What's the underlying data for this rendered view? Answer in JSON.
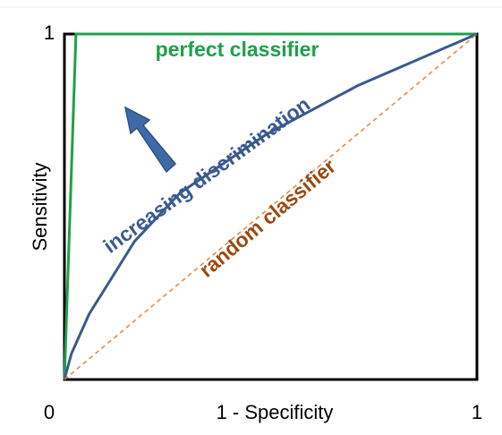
{
  "chart_data": {
    "type": "line",
    "xlabel": "1 - Specificity",
    "ylabel": "Sensitivity",
    "xlim": [
      0,
      1
    ],
    "ylim": [
      0,
      1
    ],
    "xticks": [
      0,
      1
    ],
    "yticks": [
      1
    ],
    "series": [
      {
        "name": "perfect classifier",
        "color": "#1fa04a",
        "x": [
          0,
          0.028,
          1
        ],
        "values": [
          0,
          1,
          1
        ]
      },
      {
        "name": "increasing discrimination",
        "color": "#3a5a8e",
        "x": [
          0,
          0.017,
          0.06,
          0.17,
          0.28,
          0.49,
          0.71,
          1
        ],
        "values": [
          0,
          0.075,
          0.19,
          0.4,
          0.54,
          0.71,
          0.85,
          1
        ]
      },
      {
        "name": "random classifier",
        "color": "#e8823a",
        "label_color": "#9a4a12",
        "line_style": "dashed",
        "x": [
          0,
          1
        ],
        "values": [
          0,
          1
        ]
      }
    ]
  }
}
